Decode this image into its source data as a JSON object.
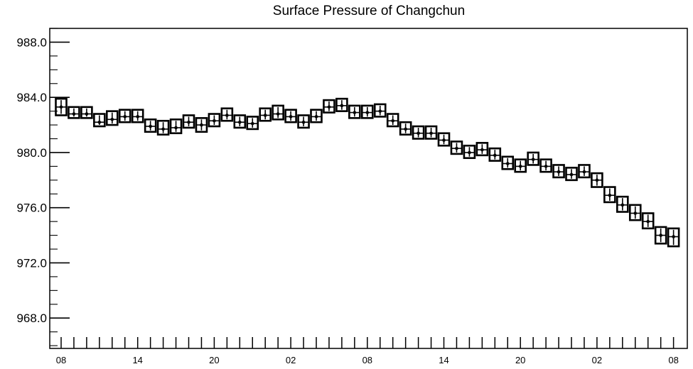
{
  "chart_data": {
    "type": "box",
    "title": "Surface Pressure of Changchun",
    "xlabel": "",
    "ylabel": "",
    "ylim": [
      965.8,
      989.0
    ],
    "yticks": [
      "988.0",
      "984.0",
      "980.0",
      "976.0",
      "972.0",
      "968.0"
    ],
    "ytick_values": [
      988,
      984,
      980,
      976,
      972,
      968
    ],
    "xticks": [
      "08",
      "14",
      "20",
      "02",
      "08",
      "14",
      "20",
      "02",
      "08"
    ],
    "xtick_hours": [
      0,
      6,
      12,
      18,
      24,
      30,
      36,
      42,
      48
    ],
    "hour_step": 1,
    "grid": false,
    "legend": "none",
    "boxes": [
      {
        "hour": 0,
        "low": 982.7,
        "high": 983.9,
        "median": 983.3
      },
      {
        "hour": 1,
        "low": 982.5,
        "high": 983.3,
        "median": 982.8
      },
      {
        "hour": 2,
        "low": 982.5,
        "high": 983.3,
        "median": 982.8
      },
      {
        "hour": 3,
        "low": 981.9,
        "high": 982.8,
        "median": 982.2
      },
      {
        "hour": 4,
        "low": 982.0,
        "high": 983.0,
        "median": 982.4
      },
      {
        "hour": 5,
        "low": 982.2,
        "high": 983.1,
        "median": 982.6
      },
      {
        "hour": 6,
        "low": 982.2,
        "high": 983.1,
        "median": 982.6
      },
      {
        "hour": 7,
        "low": 981.5,
        "high": 982.4,
        "median": 981.9
      },
      {
        "hour": 8,
        "low": 981.3,
        "high": 982.3,
        "median": 981.7
      },
      {
        "hour": 9,
        "low": 981.4,
        "high": 982.4,
        "median": 981.8
      },
      {
        "hour": 10,
        "low": 981.8,
        "high": 982.7,
        "median": 982.2
      },
      {
        "hour": 11,
        "low": 981.5,
        "high": 982.5,
        "median": 982.0
      },
      {
        "hour": 12,
        "low": 981.9,
        "high": 982.8,
        "median": 982.3
      },
      {
        "hour": 13,
        "low": 982.3,
        "high": 983.2,
        "median": 982.7
      },
      {
        "hour": 14,
        "low": 981.8,
        "high": 982.7,
        "median": 982.2
      },
      {
        "hour": 15,
        "low": 981.7,
        "high": 982.6,
        "median": 982.1
      },
      {
        "hour": 16,
        "low": 982.3,
        "high": 983.2,
        "median": 982.7
      },
      {
        "hour": 17,
        "low": 982.4,
        "high": 983.4,
        "median": 982.8
      },
      {
        "hour": 18,
        "low": 982.2,
        "high": 983.1,
        "median": 982.6
      },
      {
        "hour": 19,
        "low": 981.8,
        "high": 982.7,
        "median": 982.2
      },
      {
        "hour": 20,
        "low": 982.2,
        "high": 983.1,
        "median": 982.6
      },
      {
        "hour": 21,
        "low": 982.9,
        "high": 983.8,
        "median": 983.3
      },
      {
        "hour": 22,
        "low": 983.0,
        "high": 983.9,
        "median": 983.4
      },
      {
        "hour": 23,
        "low": 982.5,
        "high": 983.4,
        "median": 982.9
      },
      {
        "hour": 24,
        "low": 982.5,
        "high": 983.4,
        "median": 982.9
      },
      {
        "hour": 25,
        "low": 982.6,
        "high": 983.5,
        "median": 983.0
      },
      {
        "hour": 26,
        "low": 981.9,
        "high": 982.8,
        "median": 982.3
      },
      {
        "hour": 27,
        "low": 981.3,
        "high": 982.2,
        "median": 981.7
      },
      {
        "hour": 28,
        "low": 981.0,
        "high": 981.9,
        "median": 981.4
      },
      {
        "hour": 29,
        "low": 981.0,
        "high": 981.9,
        "median": 981.4
      },
      {
        "hour": 30,
        "low": 980.5,
        "high": 981.4,
        "median": 980.9
      },
      {
        "hour": 31,
        "low": 979.9,
        "high": 980.8,
        "median": 980.3
      },
      {
        "hour": 32,
        "low": 979.6,
        "high": 980.5,
        "median": 980.0
      },
      {
        "hour": 33,
        "low": 979.8,
        "high": 980.7,
        "median": 980.2
      },
      {
        "hour": 34,
        "low": 979.4,
        "high": 980.3,
        "median": 979.8
      },
      {
        "hour": 35,
        "low": 978.8,
        "high": 979.7,
        "median": 979.2
      },
      {
        "hour": 36,
        "low": 978.6,
        "high": 979.5,
        "median": 979.0
      },
      {
        "hour": 37,
        "low": 979.1,
        "high": 980.0,
        "median": 979.5
      },
      {
        "hour": 38,
        "low": 978.6,
        "high": 979.5,
        "median": 979.0
      },
      {
        "hour": 39,
        "low": 978.2,
        "high": 979.1,
        "median": 978.6
      },
      {
        "hour": 40,
        "low": 978.0,
        "high": 978.9,
        "median": 978.4
      },
      {
        "hour": 41,
        "low": 978.2,
        "high": 979.1,
        "median": 978.6
      },
      {
        "hour": 42,
        "low": 977.5,
        "high": 978.5,
        "median": 978.0
      },
      {
        "hour": 43,
        "low": 976.4,
        "high": 977.5,
        "median": 976.9
      },
      {
        "hour": 44,
        "low": 975.7,
        "high": 976.8,
        "median": 976.2
      },
      {
        "hour": 45,
        "low": 975.1,
        "high": 976.2,
        "median": 975.6
      },
      {
        "hour": 46,
        "low": 974.5,
        "high": 975.6,
        "median": 975.0
      },
      {
        "hour": 47,
        "low": 973.4,
        "high": 974.6,
        "median": 974.0
      },
      {
        "hour": 48,
        "low": 973.2,
        "high": 974.5,
        "median": 973.9
      }
    ]
  }
}
